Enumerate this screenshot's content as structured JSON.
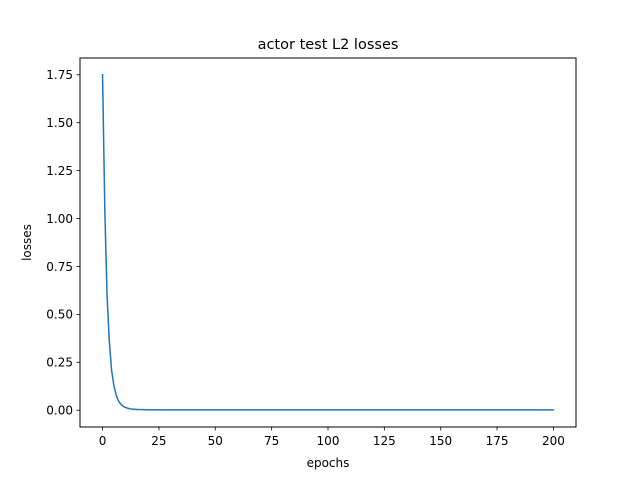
{
  "chart_data": {
    "type": "line",
    "title": "actor test L2 losses",
    "xlabel": "epochs",
    "ylabel": "losses",
    "xlim": [
      -10,
      210
    ],
    "ylim": [
      -0.0875,
      1.8375
    ],
    "xticks": [
      0,
      25,
      50,
      75,
      100,
      125,
      150,
      175,
      200
    ],
    "xtick_labels": [
      "0",
      "25",
      "50",
      "75",
      "100",
      "125",
      "150",
      "175",
      "200"
    ],
    "yticks": [
      0.0,
      0.25,
      0.5,
      0.75,
      1.0,
      1.25,
      1.5,
      1.75
    ],
    "ytick_labels": [
      "0.00",
      "0.25",
      "0.50",
      "0.75",
      "1.00",
      "1.25",
      "1.50",
      "1.75"
    ],
    "grid": false,
    "series": [
      {
        "color": "#1f77b4",
        "x": [
          0,
          1,
          2,
          3,
          4,
          5,
          6,
          7,
          8,
          9,
          10,
          11,
          12,
          13,
          14,
          15,
          16,
          18,
          20,
          25,
          30,
          40,
          50,
          75,
          100,
          125,
          150,
          175,
          200
        ],
        "y": [
          1.75,
          1.05,
          0.6,
          0.36,
          0.21,
          0.13,
          0.08,
          0.05,
          0.033,
          0.022,
          0.015,
          0.011,
          0.008,
          0.006,
          0.005,
          0.004,
          0.0035,
          0.003,
          0.0025,
          0.002,
          0.002,
          0.002,
          0.002,
          0.002,
          0.002,
          0.002,
          0.002,
          0.002,
          0.002
        ]
      }
    ]
  }
}
